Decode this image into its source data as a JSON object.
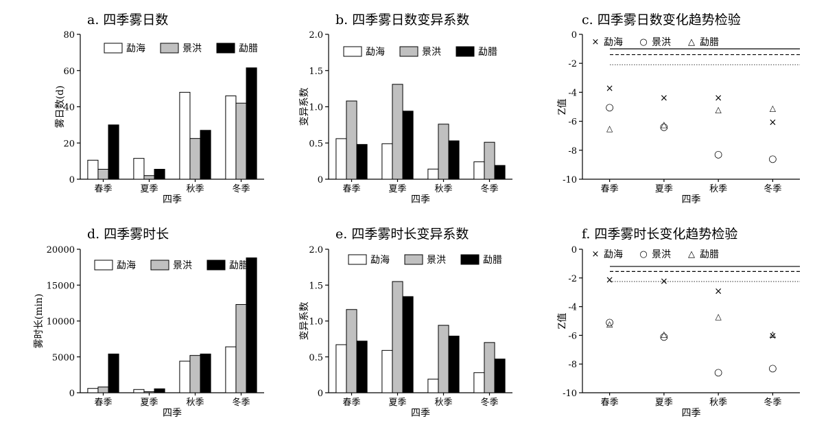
{
  "chart_data": [
    {
      "id": "a",
      "type": "bar",
      "title": "a. 四季雾日数",
      "xlabel": "四季",
      "ylabel": "雾日数(d)",
      "categories": [
        "春季",
        "夏季",
        "秋季",
        "冬季"
      ],
      "ylim": [
        0,
        80
      ],
      "yticks": [
        "0",
        "20",
        "40",
        "60",
        "80"
      ],
      "series": [
        {
          "name": "勐海",
          "values": [
            10.5,
            11.5,
            48,
            46
          ],
          "color": "#ffffff"
        },
        {
          "name": "景洪",
          "values": [
            5.5,
            2,
            22.5,
            42
          ],
          "color": "#c0c0c0"
        },
        {
          "name": "勐腊",
          "values": [
            30,
            5.5,
            27,
            61.5
          ],
          "color": "#000000"
        }
      ]
    },
    {
      "id": "b",
      "type": "bar",
      "title": "b. 四季雾日数变异系数",
      "xlabel": "四季",
      "ylabel": "变异系数",
      "categories": [
        "春季",
        "夏季",
        "秋季",
        "冬季"
      ],
      "ylim": [
        0,
        2.0
      ],
      "yticks": [
        "0",
        "0.5",
        "1.0",
        "1.5",
        "2.0"
      ],
      "series": [
        {
          "name": "勐海",
          "values": [
            0.56,
            0.49,
            0.14,
            0.24
          ],
          "color": "#ffffff"
        },
        {
          "name": "景洪",
          "values": [
            1.08,
            1.31,
            0.76,
            0.51
          ],
          "color": "#c0c0c0"
        },
        {
          "name": "勐腊",
          "values": [
            0.48,
            0.94,
            0.53,
            0.19
          ],
          "color": "#000000"
        }
      ]
    },
    {
      "id": "c",
      "type": "scatter",
      "title": "c. 四季雾日数变化趋势检验",
      "xlabel": "四季",
      "ylabel": "Z值",
      "categories": [
        "春季",
        "夏季",
        "秋季",
        "冬季"
      ],
      "ylim": [
        -10,
        0
      ],
      "yticks": [
        "0",
        "-2",
        "-4",
        "-6",
        "-8",
        "-10"
      ],
      "reference_lines": [
        {
          "value": -1.0,
          "style": "solid"
        },
        {
          "value": -1.4,
          "style": "dashed"
        },
        {
          "value": -2.1,
          "style": "dotted"
        }
      ],
      "series": [
        {
          "name": "勐海",
          "marker": "×",
          "values": [
            -3.7,
            -4.35,
            -4.35,
            -6.05
          ]
        },
        {
          "name": "景洪",
          "marker": "○",
          "values": [
            -5.0,
            -6.35,
            -8.25,
            -8.55
          ]
        },
        {
          "name": "勐腊",
          "marker": "△",
          "values": [
            -6.45,
            -6.15,
            -5.15,
            -5.05
          ]
        }
      ]
    },
    {
      "id": "d",
      "type": "bar",
      "title": "d. 四季雾时长",
      "xlabel": "四季",
      "ylabel": "雾时长(min)",
      "categories": [
        "春季",
        "夏季",
        "秋季",
        "冬季"
      ],
      "ylim": [
        0,
        20000
      ],
      "yticks": [
        "0",
        "5000",
        "10000",
        "15000",
        "20000"
      ],
      "series": [
        {
          "name": "勐海",
          "values": [
            600,
            450,
            4400,
            6400
          ],
          "color": "#ffffff"
        },
        {
          "name": "景洪",
          "values": [
            800,
            150,
            5200,
            12300
          ],
          "color": "#c0c0c0"
        },
        {
          "name": "勐腊",
          "values": [
            5400,
            550,
            5400,
            18800
          ],
          "color": "#000000"
        }
      ]
    },
    {
      "id": "e",
      "type": "bar",
      "title": "e. 四季雾时长变异系数",
      "xlabel": "四季",
      "ylabel": "变异系数",
      "categories": [
        "春季",
        "夏季",
        "秋季",
        "冬季"
      ],
      "ylim": [
        0,
        2.0
      ],
      "yticks": [
        "0",
        "0.5",
        "1.0",
        "1.5",
        "2.0"
      ],
      "series": [
        {
          "name": "勐海",
          "values": [
            0.67,
            0.59,
            0.19,
            0.28
          ],
          "color": "#ffffff"
        },
        {
          "name": "景洪",
          "values": [
            1.16,
            1.55,
            0.94,
            0.7
          ],
          "color": "#c0c0c0"
        },
        {
          "name": "勐腊",
          "values": [
            0.72,
            1.34,
            0.79,
            0.47
          ],
          "color": "#000000"
        }
      ]
    },
    {
      "id": "f",
      "type": "scatter",
      "title": "f. 四季雾时长变化趋势检验",
      "xlabel": "四季",
      "ylabel": "Z值",
      "categories": [
        "春季",
        "夏季",
        "秋季",
        "冬季"
      ],
      "ylim": [
        -10,
        0
      ],
      "yticks": [
        "0",
        "-2",
        "-4",
        "-6",
        "-8",
        "-10"
      ],
      "reference_lines": [
        {
          "value": -1.2,
          "style": "solid"
        },
        {
          "value": -1.55,
          "style": "dashed"
        },
        {
          "value": -2.25,
          "style": "dotted"
        }
      ],
      "series": [
        {
          "name": "勐海",
          "marker": "×",
          "values": [
            -2.1,
            -2.2,
            -2.9,
            -6.0
          ]
        },
        {
          "name": "景洪",
          "marker": "○",
          "values": [
            -5.05,
            -6.05,
            -8.55,
            -8.25
          ]
        },
        {
          "name": "勐腊",
          "marker": "△",
          "values": [
            -5.15,
            -5.85,
            -4.65,
            -5.85
          ]
        }
      ]
    }
  ]
}
